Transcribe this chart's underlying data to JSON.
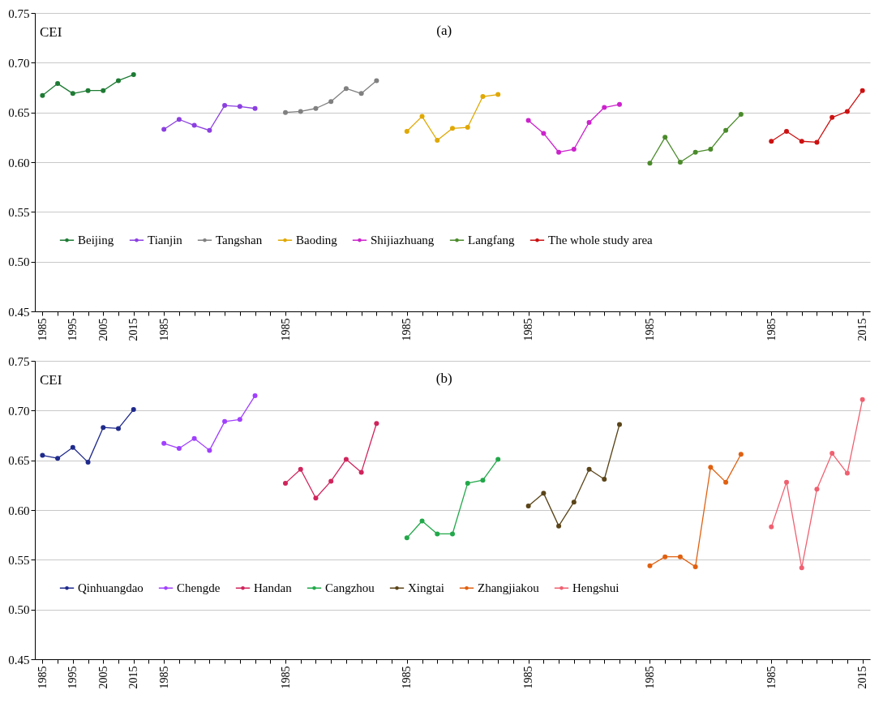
{
  "chart_data": [
    {
      "type": "line",
      "title": "(a)",
      "ylabel": "CEI",
      "ylim": [
        0.45,
        0.75
      ],
      "yticks": [
        0.45,
        {
          "value": 0.5,
          "label": "0.50"
        },
        0.55,
        {
          "value": 0.6,
          "label": "0.60"
        },
        0.65,
        {
          "value": 0.7,
          "label": "0.70"
        },
        0.75
      ],
      "grid": "y",
      "legend": "bottom",
      "marker": "circle",
      "line_style": "solid",
      "categories": [
        "1985",
        null,
        "1995",
        null,
        "2005",
        null,
        "2015",
        null,
        "1985",
        null,
        null,
        null,
        null,
        null,
        null,
        null,
        "1985",
        null,
        null,
        null,
        null,
        null,
        null,
        null,
        "1985",
        null,
        null,
        null,
        null,
        null,
        null,
        null,
        "1985",
        null,
        null,
        null,
        null,
        null,
        null,
        null,
        "1985",
        null,
        null,
        null,
        null,
        null,
        null,
        null,
        "1985",
        null,
        null,
        null,
        null,
        null,
        "2015"
      ],
      "series": [
        {
          "name": "Beijing",
          "color": "#1e7b34",
          "values": [
            0.667,
            0.679,
            0.669,
            0.672,
            0.672,
            0.682,
            0.688,
            null,
            null,
            null,
            null,
            null,
            null,
            null,
            null,
            null,
            null,
            null,
            null,
            null,
            null,
            null,
            null,
            null,
            null,
            null,
            null,
            null,
            null,
            null,
            null,
            null,
            null,
            null,
            null,
            null,
            null,
            null,
            null,
            null,
            null,
            null,
            null,
            null,
            null,
            null,
            null,
            null,
            null,
            null,
            null,
            null,
            null,
            null,
            null
          ]
        },
        {
          "name": "Tianjin",
          "color": "#8b3fe0",
          "values": [
            null,
            null,
            null,
            null,
            null,
            null,
            null,
            null,
            0.633,
            0.643,
            0.637,
            0.632,
            0.657,
            0.656,
            0.654,
            null,
            null,
            null,
            null,
            null,
            null,
            null,
            null,
            null,
            null,
            null,
            null,
            null,
            null,
            null,
            null,
            null,
            null,
            null,
            null,
            null,
            null,
            null,
            null,
            null,
            null,
            null,
            null,
            null,
            null,
            null,
            null,
            null,
            null,
            null,
            null,
            null,
            null,
            null,
            null
          ]
        },
        {
          "name": "Tangshan",
          "color": "#808080",
          "values": [
            null,
            null,
            null,
            null,
            null,
            null,
            null,
            null,
            null,
            null,
            null,
            null,
            null,
            null,
            null,
            null,
            0.65,
            0.651,
            0.654,
            0.661,
            0.674,
            0.669,
            0.682,
            null,
            null,
            null,
            null,
            null,
            null,
            null,
            null,
            null,
            null,
            null,
            null,
            null,
            null,
            null,
            null,
            null,
            null,
            null,
            null,
            null,
            null,
            null,
            null,
            null,
            null,
            null,
            null,
            null,
            null,
            null,
            null
          ]
        },
        {
          "name": "Baoding",
          "color": "#e0a800",
          "values": [
            null,
            null,
            null,
            null,
            null,
            null,
            null,
            null,
            null,
            null,
            null,
            null,
            null,
            null,
            null,
            null,
            null,
            null,
            null,
            null,
            null,
            null,
            null,
            null,
            0.631,
            0.646,
            0.622,
            0.634,
            0.635,
            0.666,
            0.668,
            null,
            null,
            null,
            null,
            null,
            null,
            null,
            null,
            null,
            null,
            null,
            null,
            null,
            null,
            null,
            null,
            null,
            null,
            null,
            null,
            null,
            null,
            null,
            null
          ]
        },
        {
          "name": "Shijiazhuang",
          "color": "#cc22cc",
          "values": [
            null,
            null,
            null,
            null,
            null,
            null,
            null,
            null,
            null,
            null,
            null,
            null,
            null,
            null,
            null,
            null,
            null,
            null,
            null,
            null,
            null,
            null,
            null,
            null,
            null,
            null,
            null,
            null,
            null,
            null,
            null,
            null,
            0.642,
            0.629,
            0.61,
            0.613,
            0.64,
            0.655,
            0.658,
            null,
            null,
            null,
            null,
            null,
            null,
            null,
            null,
            null,
            null,
            null,
            null,
            null,
            null,
            null,
            null
          ]
        },
        {
          "name": "Langfang",
          "color": "#4a8a2a",
          "values": [
            null,
            null,
            null,
            null,
            null,
            null,
            null,
            null,
            null,
            null,
            null,
            null,
            null,
            null,
            null,
            null,
            null,
            null,
            null,
            null,
            null,
            null,
            null,
            null,
            null,
            null,
            null,
            null,
            null,
            null,
            null,
            null,
            null,
            null,
            null,
            null,
            null,
            null,
            null,
            null,
            0.599,
            0.625,
            0.6,
            0.61,
            0.613,
            0.632,
            0.648,
            null,
            null,
            null,
            null,
            null,
            null,
            null,
            null
          ]
        },
        {
          "name": "The whole study area",
          "color": "#cc1111",
          "values": [
            null,
            null,
            null,
            null,
            null,
            null,
            null,
            null,
            null,
            null,
            null,
            null,
            null,
            null,
            null,
            null,
            null,
            null,
            null,
            null,
            null,
            null,
            null,
            null,
            null,
            null,
            null,
            null,
            null,
            null,
            null,
            null,
            null,
            null,
            null,
            null,
            null,
            null,
            null,
            null,
            null,
            null,
            null,
            null,
            null,
            null,
            null,
            null,
            0.621,
            0.631,
            0.621,
            0.62,
            0.645,
            0.651,
            0.672
          ]
        }
      ]
    },
    {
      "type": "line",
      "title": "(b)",
      "ylabel": "CEI",
      "ylim": [
        0.45,
        0.75
      ],
      "yticks": [
        0.45,
        {
          "value": 0.5,
          "label": "0.50"
        },
        0.55,
        {
          "value": 0.6,
          "label": "0.60"
        },
        0.65,
        {
          "value": 0.7,
          "label": "0.70"
        },
        0.75
      ],
      "grid": "y",
      "legend": "bottom",
      "marker": "circle",
      "line_style": "solid",
      "categories": [
        "1985",
        null,
        "1995",
        null,
        "2005",
        null,
        "2015",
        null,
        "1985",
        null,
        null,
        null,
        null,
        null,
        null,
        null,
        "1985",
        null,
        null,
        null,
        null,
        null,
        null,
        null,
        "1985",
        null,
        null,
        null,
        null,
        null,
        null,
        null,
        "1985",
        null,
        null,
        null,
        null,
        null,
        null,
        null,
        "1985",
        null,
        null,
        null,
        null,
        null,
        null,
        null,
        "1985",
        null,
        null,
        null,
        null,
        null,
        "2015"
      ],
      "series": [
        {
          "name": "Qinhuangdao",
          "color": "#1f2a8c",
          "values": [
            0.655,
            0.652,
            0.663,
            0.648,
            0.683,
            0.682,
            0.701,
            null,
            null,
            null,
            null,
            null,
            null,
            null,
            null,
            null,
            null,
            null,
            null,
            null,
            null,
            null,
            null,
            null,
            null,
            null,
            null,
            null,
            null,
            null,
            null,
            null,
            null,
            null,
            null,
            null,
            null,
            null,
            null,
            null,
            null,
            null,
            null,
            null,
            null,
            null,
            null,
            null,
            null,
            null,
            null,
            null,
            null,
            null,
            null
          ]
        },
        {
          "name": "Chengde",
          "color": "#a040ff",
          "values": [
            null,
            null,
            null,
            null,
            null,
            null,
            null,
            null,
            0.667,
            0.662,
            0.672,
            0.66,
            0.689,
            0.691,
            0.715,
            null,
            null,
            null,
            null,
            null,
            null,
            null,
            null,
            null,
            null,
            null,
            null,
            null,
            null,
            null,
            null,
            null,
            null,
            null,
            null,
            null,
            null,
            null,
            null,
            null,
            null,
            null,
            null,
            null,
            null,
            null,
            null,
            null,
            null,
            null,
            null,
            null,
            null,
            null,
            null
          ]
        },
        {
          "name": "Handan",
          "color": "#d0245c",
          "values": [
            null,
            null,
            null,
            null,
            null,
            null,
            null,
            null,
            null,
            null,
            null,
            null,
            null,
            null,
            null,
            null,
            0.627,
            0.641,
            0.612,
            0.629,
            0.651,
            0.638,
            0.687,
            null,
            null,
            null,
            null,
            null,
            null,
            null,
            null,
            null,
            null,
            null,
            null,
            null,
            null,
            null,
            null,
            null,
            null,
            null,
            null,
            null,
            null,
            null,
            null,
            null,
            null,
            null,
            null,
            null,
            null,
            null,
            null
          ]
        },
        {
          "name": "Cangzhou",
          "color": "#22a84a",
          "values": [
            null,
            null,
            null,
            null,
            null,
            null,
            null,
            null,
            null,
            null,
            null,
            null,
            null,
            null,
            null,
            null,
            null,
            null,
            null,
            null,
            null,
            null,
            null,
            null,
            0.572,
            0.589,
            0.576,
            0.576,
            0.627,
            0.63,
            0.651,
            null,
            null,
            null,
            null,
            null,
            null,
            null,
            null,
            null,
            null,
            null,
            null,
            null,
            null,
            null,
            null,
            null,
            null,
            null,
            null,
            null,
            null,
            null,
            null
          ]
        },
        {
          "name": "Xingtai",
          "color": "#5a4418",
          "values": [
            null,
            null,
            null,
            null,
            null,
            null,
            null,
            null,
            null,
            null,
            null,
            null,
            null,
            null,
            null,
            null,
            null,
            null,
            null,
            null,
            null,
            null,
            null,
            null,
            null,
            null,
            null,
            null,
            null,
            null,
            null,
            null,
            0.604,
            0.617,
            0.584,
            0.608,
            0.641,
            0.631,
            0.686,
            null,
            null,
            null,
            null,
            null,
            null,
            null,
            null,
            null,
            null,
            null,
            null,
            null,
            null,
            null,
            null
          ]
        },
        {
          "name": "Zhangjiakou",
          "color": "#e06010",
          "values": [
            null,
            null,
            null,
            null,
            null,
            null,
            null,
            null,
            null,
            null,
            null,
            null,
            null,
            null,
            null,
            null,
            null,
            null,
            null,
            null,
            null,
            null,
            null,
            null,
            null,
            null,
            null,
            null,
            null,
            null,
            null,
            null,
            null,
            null,
            null,
            null,
            null,
            null,
            null,
            null,
            0.544,
            0.553,
            0.553,
            0.543,
            0.643,
            0.628,
            0.656,
            null,
            null,
            null,
            null,
            null,
            null,
            null,
            null
          ]
        },
        {
          "name": "Hengshui",
          "color": "#f06070",
          "values": [
            null,
            null,
            null,
            null,
            null,
            null,
            null,
            null,
            null,
            null,
            null,
            null,
            null,
            null,
            null,
            null,
            null,
            null,
            null,
            null,
            null,
            null,
            null,
            null,
            null,
            null,
            null,
            null,
            null,
            null,
            null,
            null,
            null,
            null,
            null,
            null,
            null,
            null,
            null,
            null,
            null,
            null,
            null,
            null,
            null,
            null,
            null,
            null,
            0.583,
            0.628,
            0.542,
            0.621,
            0.657,
            0.637,
            0.711
          ]
        }
      ]
    }
  ]
}
